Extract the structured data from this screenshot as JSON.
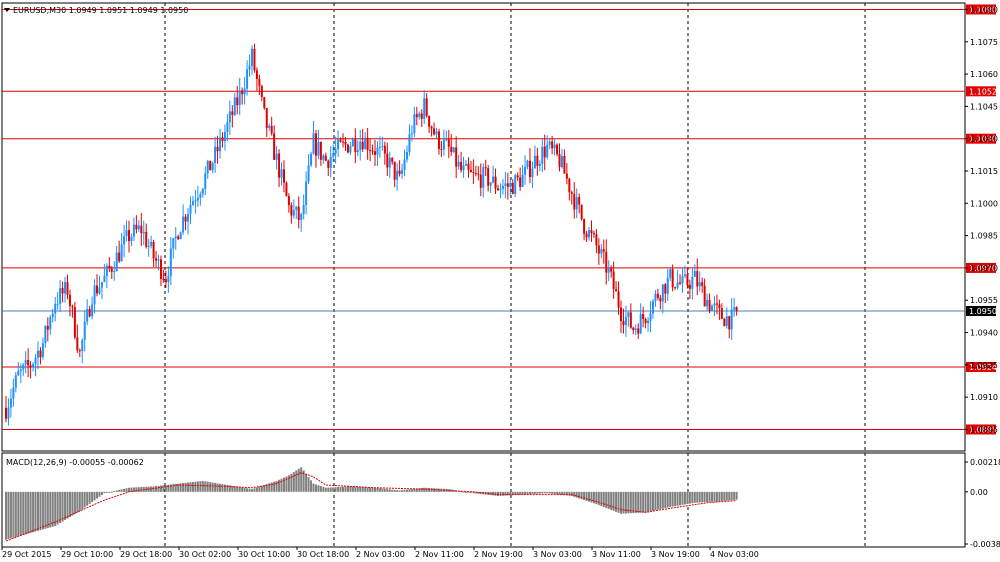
{
  "header": {
    "symbol_line": "EURUSD,M30  1.0949 1.0951 1.0949 1.0950",
    "indicator_line": "MACD(12,26,9) -0.00055 -0.00062"
  },
  "colors": {
    "bull": "#1e90ff",
    "bear": "#e00000",
    "level_line": "#e00000",
    "current_line": "#4a7fb5",
    "macd_hist": "#808080",
    "signal": "#e00000",
    "grid": "#000000",
    "frame": "#000000"
  },
  "chart_data": [
    {
      "type": "candlestick",
      "symbol": "EURUSD",
      "timeframe": "M30",
      "ylim": [
        1.0885,
        1.1093
      ],
      "y_ticks": [
        "1.1090",
        "1.1075",
        "1.1060",
        "1.1045",
        "1.1030",
        "1.1015",
        "1.1000",
        "1.0985",
        "1.0970",
        "1.0955",
        "1.0940",
        "1.0925",
        "1.0910",
        "1.0895"
      ],
      "horizontal_levels": [
        {
          "value": 1.109,
          "label": "1.1090"
        },
        {
          "value": 1.1052,
          "label": "1.1052"
        },
        {
          "value": 1.103,
          "label": "1.1030"
        },
        {
          "value": 1.097,
          "label": "1.0970"
        },
        {
          "value": 1.0924,
          "label": "1.0924"
        },
        {
          "value": 1.0895,
          "label": "1.0895"
        }
      ],
      "current_price": {
        "value": 1.095,
        "label": "1.0950"
      },
      "x_labels": [
        "29 Oct 2015",
        "29 Oct 10:00",
        "29 Oct 18:00",
        "30 Oct 02:00",
        "30 Oct 10:00",
        "30 Oct 18:00",
        "2 Nov 03:00",
        "2 Nov 11:00",
        "2 Nov 19:00",
        "3 Nov 03:00",
        "3 Nov 11:00",
        "3 Nov 19:00",
        "4 Nov 03:00"
      ],
      "period_separators_after_label": [
        "29 Oct 18:00",
        "30 Oct 18:00",
        "2 Nov 19:00",
        "3 Nov 19:00"
      ],
      "close_path": [
        [
          0,
          1.0905
        ],
        [
          5,
          1.092
        ],
        [
          10,
          1.0925
        ],
        [
          15,
          1.0935
        ],
        [
          20,
          1.0955
        ],
        [
          25,
          1.096
        ],
        [
          30,
          1.093
        ],
        [
          35,
          1.0958
        ],
        [
          40,
          1.0965
        ],
        [
          45,
          1.0975
        ],
        [
          50,
          1.0985
        ],
        [
          55,
          1.0988
        ],
        [
          60,
          1.0975
        ],
        [
          65,
          1.0966
        ],
        [
          70,
          1.0988
        ],
        [
          75,
          1.1
        ],
        [
          80,
          1.101
        ],
        [
          85,
          1.1022
        ],
        [
          90,
          1.1036
        ],
        [
          95,
          1.105
        ],
        [
          100,
          1.1068
        ],
        [
          105,
          1.104
        ],
        [
          110,
          1.102
        ],
        [
          115,
          1.0998
        ],
        [
          120,
          1.0992
        ],
        [
          125,
          1.1028
        ],
        [
          130,
          1.102
        ],
        [
          135,
          1.1025
        ],
        [
          140,
          1.1028
        ],
        [
          145,
          1.103
        ],
        [
          150,
          1.1025
        ],
        [
          155,
          1.102
        ],
        [
          160,
          1.101
        ],
        [
          165,
          1.1035
        ],
        [
          170,
          1.1045
        ],
        [
          175,
          1.103
        ],
        [
          180,
          1.1025
        ],
        [
          185,
          1.1015
        ],
        [
          190,
          1.1012
        ],
        [
          195,
          1.1012
        ],
        [
          200,
          1.1008
        ],
        [
          205,
          1.1008
        ],
        [
          210,
          1.1012
        ],
        [
          215,
          1.102
        ],
        [
          220,
          1.1026
        ],
        [
          225,
          1.102
        ],
        [
          230,
          1.1005
        ],
        [
          235,
          1.099
        ],
        [
          240,
          1.098
        ],
        [
          245,
          1.0968
        ],
        [
          250,
          1.095
        ],
        [
          255,
          1.0942
        ],
        [
          260,
          1.0948
        ],
        [
          265,
          1.0958
        ],
        [
          270,
          1.0965
        ],
        [
          275,
          1.0962
        ],
        [
          280,
          1.0965
        ],
        [
          285,
          1.0955
        ],
        [
          290,
          1.0948
        ],
        [
          295,
          1.0946
        ],
        [
          298,
          1.095
        ]
      ],
      "candle_count": 298
    },
    {
      "type": "bar",
      "name": "MACD(12,26,9)",
      "main_value": "-0.00055",
      "signal_value": "-0.00062",
      "ylim": [
        -0.00381,
        0.00218
      ],
      "y_ticks": [
        "0.00218",
        "0.00",
        "-0.00381"
      ],
      "macd_path": [
        [
          0,
          -0.0035
        ],
        [
          10,
          -0.003
        ],
        [
          20,
          -0.0025
        ],
        [
          30,
          -0.0014
        ],
        [
          40,
          -0.0001
        ],
        [
          50,
          0.0003
        ],
        [
          60,
          0.0004
        ],
        [
          70,
          0.0006
        ],
        [
          80,
          0.0008
        ],
        [
          90,
          0.0005
        ],
        [
          100,
          0.0002
        ],
        [
          105,
          0.0005
        ],
        [
          110,
          0.0008
        ],
        [
          115,
          0.0012
        ],
        [
          120,
          0.0018
        ],
        [
          125,
          0.0006
        ],
        [
          130,
          0.0003
        ],
        [
          140,
          0.0004
        ],
        [
          150,
          0.0003
        ],
        [
          160,
          0.0001
        ],
        [
          170,
          0.0003
        ],
        [
          180,
          0.0002
        ],
        [
          190,
          -0.0001
        ],
        [
          200,
          -0.0003
        ],
        [
          210,
          -0.0002
        ],
        [
          220,
          -0.0001
        ],
        [
          230,
          -0.0003
        ],
        [
          240,
          -0.0009
        ],
        [
          250,
          -0.0016
        ],
        [
          260,
          -0.0015
        ],
        [
          270,
          -0.0011
        ],
        [
          280,
          -0.0008
        ],
        [
          290,
          -0.0007
        ],
        [
          298,
          -0.00055
        ]
      ],
      "signal_path": [
        [
          0,
          -0.0036
        ],
        [
          20,
          -0.0022
        ],
        [
          40,
          -0.0006
        ],
        [
          50,
          0.0
        ],
        [
          70,
          0.0005
        ],
        [
          90,
          0.0004
        ],
        [
          100,
          0.0003
        ],
        [
          110,
          0.0006
        ],
        [
          120,
          0.0014
        ],
        [
          125,
          0.0011
        ],
        [
          130,
          0.0005
        ],
        [
          150,
          0.0003
        ],
        [
          170,
          0.0002
        ],
        [
          190,
          0.0
        ],
        [
          200,
          -0.0002
        ],
        [
          220,
          -0.0002
        ],
        [
          230,
          -0.0002
        ],
        [
          240,
          -0.0007
        ],
        [
          250,
          -0.0013
        ],
        [
          260,
          -0.0015
        ],
        [
          270,
          -0.0012
        ],
        [
          285,
          -0.0008
        ],
        [
          298,
          -0.00062
        ]
      ]
    }
  ]
}
